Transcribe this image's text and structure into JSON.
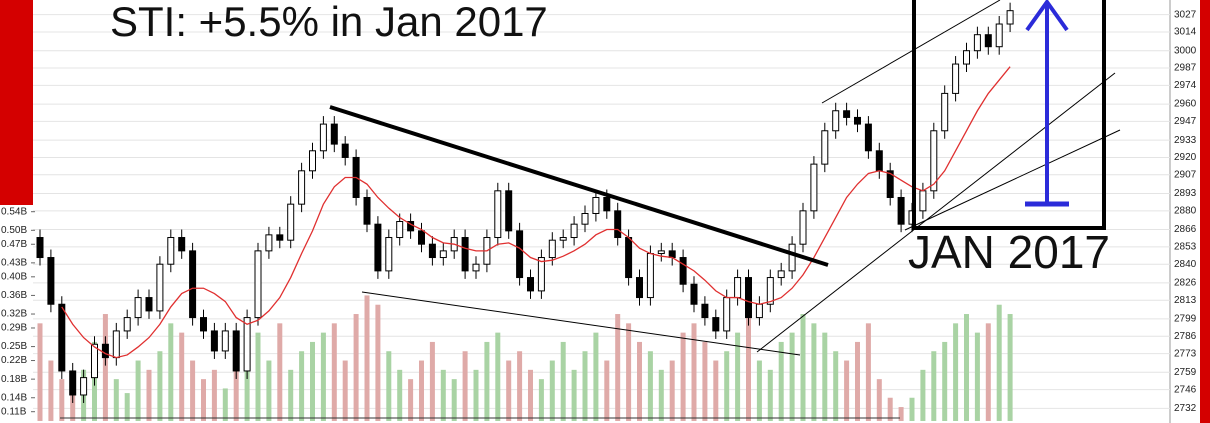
{
  "chart_data": {
    "type": "candlestick",
    "title": "STI: +5.5% in Jan 2017",
    "annotation": "JAN 2017",
    "up_color": "#ffffff",
    "down_color": "#000000",
    "grid": true,
    "ylim": [
      2721,
      3038
    ],
    "yticks": [
      2732,
      2746,
      2759,
      2773,
      2786,
      2799,
      2813,
      2826,
      2840,
      2853,
      2866,
      2880,
      2893,
      2907,
      2920,
      2933,
      2947,
      2960,
      2974,
      2987,
      3000,
      3014,
      3027
    ],
    "open": [
      2860,
      2845,
      2810,
      2760,
      2742,
      2755,
      2780,
      2770,
      2790,
      2800,
      2815,
      2805,
      2840,
      2860,
      2850,
      2800,
      2790,
      2775,
      2790,
      2760,
      2800,
      2850,
      2862,
      2858,
      2885,
      2910,
      2925,
      2945,
      2930,
      2920,
      2890,
      2870,
      2835,
      2860,
      2872,
      2865,
      2855,
      2845,
      2850,
      2860,
      2835,
      2840,
      2860,
      2895,
      2865,
      2830,
      2820,
      2845,
      2858,
      2860,
      2870,
      2878,
      2890,
      2880,
      2860,
      2830,
      2815,
      2848,
      2850,
      2845,
      2825,
      2810,
      2800,
      2790,
      2815,
      2830,
      2800,
      2810,
      2830,
      2835,
      2855,
      2880,
      2915,
      2940,
      2955,
      2950,
      2945,
      2925,
      2910,
      2890,
      2870,
      2880,
      2895,
      2940,
      2968,
      2990,
      3000,
      3012,
      3003,
      3020
    ],
    "high": [
      2866,
      2851,
      2816,
      2766,
      2761,
      2786,
      2786,
      2796,
      2806,
      2821,
      2821,
      2846,
      2866,
      2866,
      2856,
      2806,
      2796,
      2796,
      2796,
      2806,
      2856,
      2868,
      2868,
      2891,
      2916,
      2931,
      2951,
      2951,
      2936,
      2926,
      2896,
      2876,
      2866,
      2878,
      2878,
      2871,
      2861,
      2856,
      2866,
      2866,
      2846,
      2866,
      2901,
      2901,
      2871,
      2836,
      2851,
      2864,
      2866,
      2876,
      2884,
      2896,
      2896,
      2886,
      2866,
      2836,
      2854,
      2856,
      2856,
      2851,
      2831,
      2816,
      2806,
      2821,
      2836,
      2836,
      2816,
      2836,
      2841,
      2861,
      2886,
      2921,
      2946,
      2961,
      2961,
      2956,
      2951,
      2931,
      2916,
      2896,
      2886,
      2901,
      2946,
      2974,
      2996,
      3006,
      3018,
      3018,
      3026,
      3036
    ],
    "low": [
      2839,
      2804,
      2754,
      2736,
      2736,
      2749,
      2764,
      2764,
      2784,
      2794,
      2799,
      2799,
      2834,
      2844,
      2794,
      2784,
      2769,
      2769,
      2754,
      2754,
      2794,
      2844,
      2852,
      2852,
      2879,
      2904,
      2919,
      2924,
      2914,
      2884,
      2864,
      2829,
      2829,
      2854,
      2859,
      2849,
      2839,
      2839,
      2844,
      2829,
      2829,
      2834,
      2854,
      2859,
      2824,
      2814,
      2814,
      2839,
      2852,
      2854,
      2864,
      2872,
      2874,
      2854,
      2824,
      2809,
      2809,
      2842,
      2839,
      2819,
      2804,
      2794,
      2784,
      2784,
      2809,
      2794,
      2794,
      2804,
      2824,
      2829,
      2849,
      2874,
      2909,
      2934,
      2944,
      2939,
      2919,
      2904,
      2884,
      2864,
      2864,
      2874,
      2889,
      2934,
      2962,
      2984,
      2994,
      2997,
      2997,
      3014
    ],
    "close": [
      2845,
      2810,
      2760,
      2742,
      2755,
      2780,
      2770,
      2790,
      2800,
      2815,
      2805,
      2840,
      2860,
      2850,
      2800,
      2790,
      2775,
      2790,
      2760,
      2800,
      2850,
      2862,
      2858,
      2885,
      2910,
      2925,
      2945,
      2930,
      2920,
      2890,
      2870,
      2835,
      2860,
      2872,
      2865,
      2855,
      2845,
      2850,
      2860,
      2835,
      2840,
      2860,
      2895,
      2865,
      2830,
      2820,
      2845,
      2858,
      2860,
      2870,
      2878,
      2890,
      2880,
      2860,
      2830,
      2815,
      2848,
      2850,
      2845,
      2825,
      2810,
      2800,
      2790,
      2815,
      2830,
      2800,
      2810,
      2830,
      2835,
      2855,
      2880,
      2915,
      2940,
      2955,
      2950,
      2945,
      2925,
      2910,
      2890,
      2870,
      2880,
      2895,
      2940,
      2968,
      2990,
      3000,
      3012,
      3003,
      3020,
      3030
    ],
    "ma": {
      "color": "#e03030",
      "values": [
        null,
        null,
        2808,
        2795,
        2785,
        2778,
        2773,
        2770,
        2772,
        2778,
        2785,
        2795,
        2808,
        2818,
        2822,
        2822,
        2818,
        2812,
        2800,
        2795,
        2798,
        2805,
        2815,
        2830,
        2848,
        2865,
        2885,
        2898,
        2905,
        2905,
        2900,
        2890,
        2882,
        2875,
        2870,
        2866,
        2860,
        2856,
        2855,
        2852,
        2850,
        2850,
        2855,
        2856,
        2852,
        2845,
        2842,
        2843,
        2846,
        2850,
        2855,
        2862,
        2866,
        2866,
        2860,
        2852,
        2848,
        2846,
        2845,
        2840,
        2835,
        2828,
        2820,
        2815,
        2815,
        2812,
        2810,
        2812,
        2815,
        2822,
        2832,
        2845,
        2860,
        2875,
        2890,
        2900,
        2908,
        2910,
        2908,
        2903,
        2898,
        2895,
        2900,
        2910,
        2925,
        2940,
        2955,
        2968,
        2978,
        2988
      ]
    },
    "volume": {
      "up_color": "#a9d3a4",
      "down_color": "#dfaaa8",
      "ylim": [
        0.09,
        0.56
      ],
      "yticks": [
        {
          "value": 0.11,
          "label": "0.11B"
        },
        {
          "value": 0.14,
          "label": "0.14B"
        },
        {
          "value": 0.18,
          "label": "0.18B"
        },
        {
          "value": 0.22,
          "label": "0.22B"
        },
        {
          "value": 0.25,
          "label": "0.25B"
        },
        {
          "value": 0.29,
          "label": "0.29B"
        },
        {
          "value": 0.32,
          "label": "0.32B"
        },
        {
          "value": 0.36,
          "label": "0.36B"
        },
        {
          "value": 0.4,
          "label": "0.40B"
        },
        {
          "value": 0.43,
          "label": "0.43B"
        },
        {
          "value": 0.47,
          "label": "0.47B"
        },
        {
          "value": 0.5,
          "label": "0.50B"
        },
        {
          "value": 0.54,
          "label": "0.54B"
        }
      ],
      "values": [
        0.3,
        0.22,
        0.18,
        0.15,
        0.2,
        0.26,
        0.32,
        0.18,
        0.15,
        0.22,
        0.2,
        0.24,
        0.3,
        0.28,
        0.22,
        0.18,
        0.2,
        0.16,
        0.24,
        0.26,
        0.28,
        0.22,
        0.3,
        0.2,
        0.24,
        0.26,
        0.28,
        0.3,
        0.22,
        0.32,
        0.36,
        0.34,
        0.24,
        0.2,
        0.18,
        0.22,
        0.26,
        0.2,
        0.18,
        0.24,
        0.2,
        0.26,
        0.28,
        0.22,
        0.24,
        0.2,
        0.18,
        0.22,
        0.26,
        0.2,
        0.24,
        0.28,
        0.22,
        0.32,
        0.3,
        0.26,
        0.24,
        0.2,
        0.22,
        0.28,
        0.3,
        0.26,
        0.22,
        0.24,
        0.28,
        0.34,
        0.22,
        0.2,
        0.26,
        0.28,
        0.32,
        0.3,
        0.28,
        0.24,
        0.22,
        0.26,
        0.3,
        0.18,
        0.14,
        0.12,
        0.14,
        0.2,
        0.24,
        0.26,
        0.3,
        0.32,
        0.28,
        0.3,
        0.34,
        0.32
      ]
    }
  }
}
